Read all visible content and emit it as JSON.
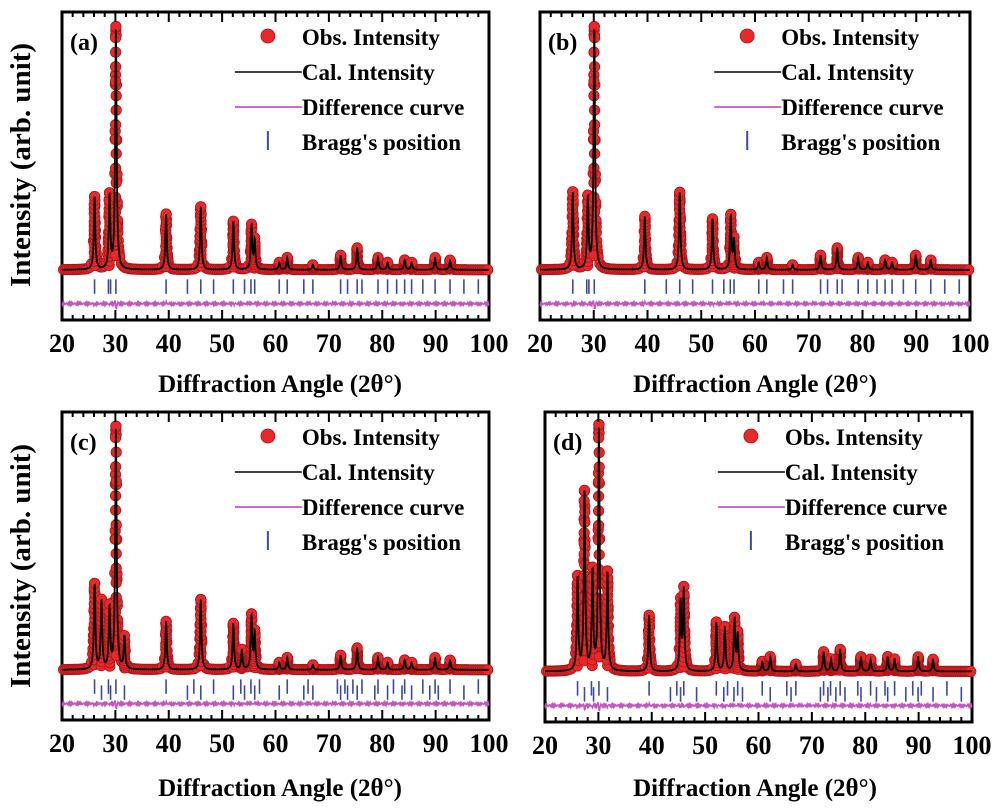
{
  "chart_data": [
    {
      "type": "line",
      "panel": "(a)",
      "xlabel": "Diffraction Angle (2θ°)",
      "ylabel": "Intensity (arb. unit)",
      "xlim": [
        20,
        100
      ],
      "xticks": [
        20,
        30,
        40,
        50,
        60,
        70,
        80,
        90,
        100
      ],
      "legend": [
        "Obs. Intensity",
        "Cal. Intensity",
        "Difference curve",
        "Bragg's position"
      ],
      "legend_position": "top-right",
      "peaks": [
        [
          26.1,
          0.3
        ],
        [
          28.9,
          0.3
        ],
        [
          30.1,
          1.0
        ],
        [
          39.5,
          0.23
        ],
        [
          46.0,
          0.26
        ],
        [
          52.1,
          0.2
        ],
        [
          55.5,
          0.18
        ],
        [
          56.1,
          0.12
        ],
        [
          60.7,
          0.03
        ],
        [
          62.2,
          0.05
        ],
        [
          67.0,
          0.02
        ],
        [
          72.2,
          0.06
        ],
        [
          75.3,
          0.09
        ],
        [
          79.2,
          0.05
        ],
        [
          81.0,
          0.03
        ],
        [
          84.2,
          0.04
        ],
        [
          85.5,
          0.03
        ],
        [
          89.9,
          0.05
        ],
        [
          92.7,
          0.04
        ]
      ],
      "bragg_positions": [
        26.1,
        28.7,
        29.1,
        30.1,
        39.5,
        43.5,
        46.0,
        48.4,
        52.1,
        54.2,
        55.4,
        56.1,
        60.7,
        62.2,
        65.3,
        67.0,
        72.2,
        73.5,
        75.3,
        76.2,
        79.2,
        81.0,
        82.7,
        84.2,
        85.5,
        87.6,
        89.9,
        92.7,
        95.3,
        98.0
      ]
    },
    {
      "type": "line",
      "panel": "(b)",
      "xlabel": "Diffraction Angle (2θ°)",
      "xlim": [
        20,
        100
      ],
      "xticks": [
        20,
        30,
        40,
        50,
        60,
        70,
        80,
        90,
        100
      ],
      "legend": [
        "Obs. Intensity",
        "Cal. Intensity",
        "Difference curve",
        "Bragg's position"
      ],
      "legend_position": "top-right",
      "peaks": [
        [
          26.1,
          0.32
        ],
        [
          28.9,
          0.29
        ],
        [
          30.1,
          1.0
        ],
        [
          39.5,
          0.22
        ],
        [
          46.0,
          0.32
        ],
        [
          52.1,
          0.21
        ],
        [
          55.5,
          0.22
        ],
        [
          56.1,
          0.12
        ],
        [
          60.7,
          0.03
        ],
        [
          62.2,
          0.05
        ],
        [
          67.0,
          0.02
        ],
        [
          72.2,
          0.06
        ],
        [
          75.3,
          0.09
        ],
        [
          79.2,
          0.05
        ],
        [
          81.0,
          0.03
        ],
        [
          84.2,
          0.04
        ],
        [
          85.5,
          0.03
        ],
        [
          89.9,
          0.06
        ],
        [
          92.7,
          0.04
        ]
      ],
      "bragg_positions": [
        26.1,
        28.7,
        29.1,
        30.1,
        39.5,
        43.5,
        46.0,
        48.4,
        52.1,
        54.2,
        55.4,
        56.1,
        60.7,
        62.2,
        65.3,
        67.0,
        72.2,
        73.5,
        75.3,
        76.2,
        79.2,
        81.0,
        82.7,
        84.2,
        85.5,
        87.6,
        89.9,
        92.7,
        95.3,
        98.0
      ]
    },
    {
      "type": "line",
      "panel": "(c)",
      "xlabel": "Diffraction Angle (2θ°)",
      "ylabel": "Intensity (arb. unit)",
      "xlim": [
        20,
        100
      ],
      "xticks": [
        20,
        30,
        40,
        50,
        60,
        70,
        80,
        90,
        100
      ],
      "legend": [
        "Obs. Intensity",
        "Cal. Intensity",
        "Difference curve",
        "Bragg's position"
      ],
      "legend_position": "top-right",
      "peaks": [
        [
          26.1,
          0.35
        ],
        [
          27.4,
          0.28
        ],
        [
          28.9,
          0.25
        ],
        [
          30.1,
          1.0
        ],
        [
          31.7,
          0.13
        ],
        [
          39.5,
          0.2
        ],
        [
          46.0,
          0.29
        ],
        [
          52.1,
          0.19
        ],
        [
          53.7,
          0.08
        ],
        [
          55.5,
          0.22
        ],
        [
          56.1,
          0.15
        ],
        [
          60.7,
          0.03
        ],
        [
          62.2,
          0.05
        ],
        [
          67.0,
          0.02
        ],
        [
          72.2,
          0.06
        ],
        [
          75.3,
          0.09
        ],
        [
          79.2,
          0.05
        ],
        [
          81.0,
          0.03
        ],
        [
          84.2,
          0.04
        ],
        [
          85.5,
          0.03
        ],
        [
          89.9,
          0.05
        ],
        [
          92.7,
          0.04
        ]
      ],
      "bragg_positions": [
        26.1,
        27.4,
        28.7,
        29.1,
        30.1,
        31.7,
        39.5,
        43.5,
        44.7,
        46.0,
        48.4,
        52.1,
        53.5,
        54.2,
        55.4,
        56.1,
        57.0,
        60.7,
        62.2,
        65.3,
        66.1,
        67.0,
        71.6,
        72.2,
        73.0,
        73.5,
        74.5,
        75.3,
        76.2,
        78.6,
        79.2,
        81.0,
        82.1,
        83.7,
        84.2,
        85.5,
        87.6,
        88.9,
        89.9,
        90.5,
        92.7,
        95.3,
        98.0
      ]
    },
    {
      "type": "line",
      "panel": "(d)",
      "xlabel": "Diffraction Angle (2θ°)",
      "xlim": [
        20,
        100
      ],
      "xticks": [
        20,
        30,
        40,
        50,
        60,
        70,
        80,
        90,
        100
      ],
      "legend": [
        "Obs. Intensity",
        "Cal. Intensity",
        "Difference curve",
        "Bragg's position"
      ],
      "legend_position": "top-right",
      "peaks": [
        [
          26.1,
          0.38
        ],
        [
          27.4,
          0.73
        ],
        [
          28.9,
          0.4
        ],
        [
          30.1,
          1.0
        ],
        [
          31.7,
          0.4
        ],
        [
          39.5,
          0.23
        ],
        [
          45.4,
          0.28
        ],
        [
          46.0,
          0.33
        ],
        [
          52.1,
          0.2
        ],
        [
          53.7,
          0.18
        ],
        [
          55.5,
          0.21
        ],
        [
          56.1,
          0.15
        ],
        [
          60.7,
          0.04
        ],
        [
          62.2,
          0.06
        ],
        [
          67.0,
          0.03
        ],
        [
          72.2,
          0.08
        ],
        [
          73.6,
          0.05
        ],
        [
          75.3,
          0.09
        ],
        [
          79.2,
          0.06
        ],
        [
          81.0,
          0.05
        ],
        [
          84.2,
          0.06
        ],
        [
          85.5,
          0.05
        ],
        [
          89.9,
          0.06
        ],
        [
          92.7,
          0.05
        ]
      ],
      "bragg_positions": [
        26.1,
        27.4,
        28.7,
        29.1,
        30.1,
        31.7,
        39.5,
        43.5,
        44.7,
        45.4,
        46.0,
        48.4,
        52.1,
        53.5,
        54.2,
        55.4,
        56.1,
        57.0,
        60.7,
        62.2,
        65.3,
        66.1,
        67.0,
        71.6,
        72.2,
        73.0,
        73.5,
        74.5,
        75.3,
        76.2,
        78.6,
        79.2,
        81.0,
        82.1,
        83.7,
        84.2,
        85.5,
        87.6,
        88.9,
        89.9,
        90.5,
        92.7,
        95.3,
        98.0
      ]
    }
  ],
  "colors": {
    "observed": "#e8292b",
    "observed_edge": "#b01418",
    "calculated": "#000000",
    "difference": "#c058c0",
    "bragg": "#3d4a9e"
  }
}
